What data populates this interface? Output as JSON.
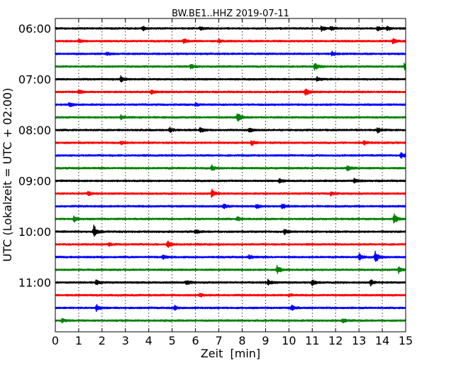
{
  "chart_data": {
    "type": "line",
    "title": "BW.BE1..HHZ 2019-07-11",
    "xlabel": "Zeit  [min]",
    "ylabel": "UTC (Lokalzeit = UTC + 02:00)",
    "xlim": [
      0,
      15
    ],
    "x_ticks": [
      "0",
      "1",
      "2",
      "3",
      "4",
      "5",
      "6",
      "7",
      "8",
      "9",
      "10",
      "11",
      "12",
      "13",
      "14",
      "15"
    ],
    "y_tick_labels": [
      "06:00",
      "07:00",
      "08:00",
      "09:00",
      "10:00",
      "11:00"
    ],
    "traces_per_hour": 4,
    "minutes_per_trace": 15,
    "start_time": "06:00",
    "trace_color_cycle": [
      "#000000",
      "#ff0000",
      "#0000ff",
      "#008000"
    ],
    "grid": "vertical dotted lines at each minute",
    "traces": [
      {
        "start": "06:00",
        "events": [
          [
            3.75,
            0.35
          ],
          [
            6.2,
            0.2
          ],
          [
            11.4,
            0.4
          ],
          [
            11.8,
            0.3
          ],
          [
            13.8,
            0.3
          ],
          [
            14.2,
            0.35
          ]
        ]
      },
      {
        "start": "06:15",
        "events": [
          [
            1.0,
            0.3
          ],
          [
            5.5,
            0.35
          ],
          [
            7.0,
            0.2
          ],
          [
            14.45,
            0.35
          ]
        ]
      },
      {
        "start": "06:30",
        "events": [
          [
            2.2,
            0.2
          ],
          [
            11.85,
            0.35
          ]
        ]
      },
      {
        "start": "06:45",
        "events": [
          [
            5.8,
            0.35
          ],
          [
            11.1,
            0.55
          ],
          [
            14.95,
            0.5
          ]
        ]
      },
      {
        "start": "07:00",
        "events": [
          [
            2.8,
            0.45
          ],
          [
            11.2,
            0.35
          ]
        ]
      },
      {
        "start": "07:15",
        "events": [
          [
            1.0,
            0.35
          ],
          [
            4.1,
            0.35
          ],
          [
            10.7,
            0.6
          ]
        ]
      },
      {
        "start": "07:30",
        "events": [
          [
            0.6,
            0.35
          ],
          [
            6.0,
            0.2
          ]
        ]
      },
      {
        "start": "07:45",
        "events": [
          [
            2.8,
            0.35
          ],
          [
            7.8,
            0.7
          ]
        ]
      },
      {
        "start": "08:00",
        "events": [
          [
            4.9,
            0.4
          ],
          [
            6.2,
            0.4
          ],
          [
            8.3,
            0.3
          ],
          [
            13.8,
            0.35
          ]
        ]
      },
      {
        "start": "08:15",
        "events": [
          [
            2.8,
            0.25
          ],
          [
            8.4,
            0.35
          ],
          [
            13.2,
            0.3
          ]
        ]
      },
      {
        "start": "08:30",
        "events": [
          [
            14.8,
            0.45
          ]
        ]
      },
      {
        "start": "08:45",
        "events": [
          [
            6.7,
            0.45
          ],
          [
            12.5,
            0.35
          ]
        ]
      },
      {
        "start": "09:00",
        "events": [
          [
            9.6,
            0.3
          ],
          [
            12.8,
            0.3
          ]
        ]
      },
      {
        "start": "09:15",
        "events": [
          [
            1.4,
            0.3
          ],
          [
            6.7,
            0.7
          ],
          [
            11.8,
            0.3
          ]
        ]
      },
      {
        "start": "09:30",
        "events": [
          [
            7.2,
            0.35
          ],
          [
            8.6,
            0.35
          ],
          [
            9.7,
            0.5
          ]
        ]
      },
      {
        "start": "09:45",
        "events": [
          [
            0.8,
            0.45
          ],
          [
            7.8,
            0.3
          ],
          [
            14.5,
            0.8
          ]
        ]
      },
      {
        "start": "10:00",
        "events": [
          [
            1.65,
            0.95
          ],
          [
            6.0,
            0.3
          ],
          [
            9.8,
            0.4
          ]
        ]
      },
      {
        "start": "10:15",
        "events": [
          [
            2.3,
            0.25
          ],
          [
            4.8,
            0.5
          ]
        ]
      },
      {
        "start": "10:30",
        "events": [
          [
            4.6,
            0.3
          ],
          [
            8.3,
            0.3
          ],
          [
            13.0,
            0.6
          ],
          [
            13.7,
            1.0
          ]
        ]
      },
      {
        "start": "10:45",
        "events": [
          [
            9.5,
            0.65
          ],
          [
            14.7,
            0.45
          ]
        ]
      },
      {
        "start": "11:00",
        "events": [
          [
            1.75,
            0.35
          ],
          [
            5.6,
            0.35
          ],
          [
            9.1,
            0.4
          ],
          [
            11.0,
            0.45
          ],
          [
            13.5,
            0.45
          ]
        ]
      },
      {
        "start": "11:15",
        "events": [
          [
            6.2,
            0.25
          ],
          [
            10.0,
            0.2
          ]
        ]
      },
      {
        "start": "11:30",
        "events": [
          [
            1.75,
            0.55
          ],
          [
            5.1,
            0.35
          ],
          [
            10.1,
            0.45
          ]
        ]
      },
      {
        "start": "11:45",
        "events": [
          [
            0.3,
            0.3
          ],
          [
            12.3,
            0.35
          ]
        ]
      }
    ]
  }
}
